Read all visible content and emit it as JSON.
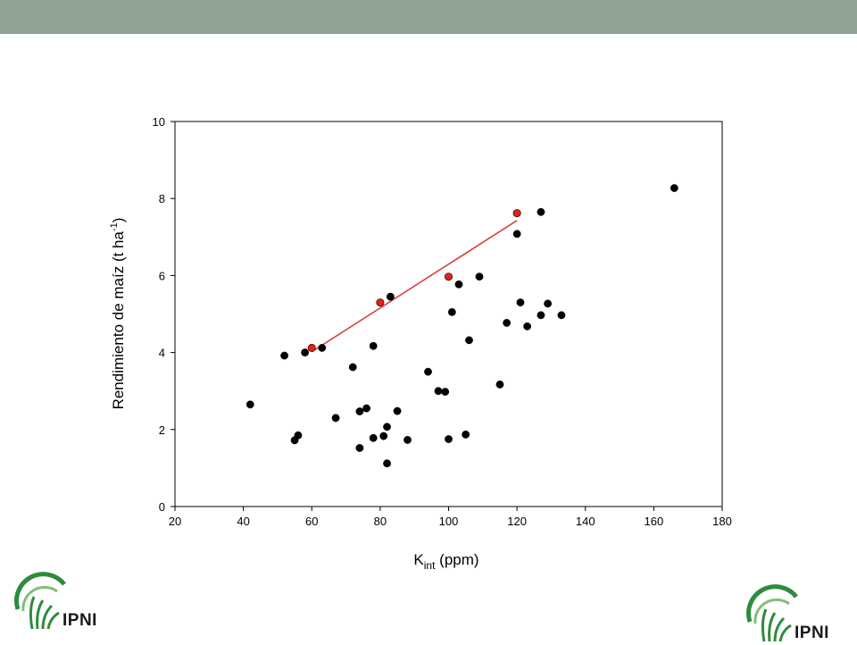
{
  "chart_data": {
    "type": "scatter",
    "title": "",
    "xlabel": {
      "main": "K",
      "sub": "int",
      "rest": " (ppm)"
    },
    "ylabel": {
      "main": "Rendimiento de maíz (t ha",
      "sup": "-1",
      "rest": ")"
    },
    "xlim": [
      20,
      180
    ],
    "ylim": [
      0,
      10
    ],
    "xticks": [
      20,
      40,
      60,
      80,
      100,
      120,
      140,
      160,
      180
    ],
    "yticks": [
      0,
      2,
      4,
      6,
      8,
      10
    ],
    "grid": false,
    "legend": "none",
    "series": [
      {
        "color": "#000000",
        "points": [
          [
            42,
            2.65
          ],
          [
            52,
            3.92
          ],
          [
            55,
            1.72
          ],
          [
            56,
            1.85
          ],
          [
            58,
            4.0
          ],
          [
            63,
            4.12
          ],
          [
            67,
            2.3
          ],
          [
            72,
            3.62
          ],
          [
            74,
            2.47
          ],
          [
            74,
            1.52
          ],
          [
            76,
            2.55
          ],
          [
            78,
            4.17
          ],
          [
            78,
            1.78
          ],
          [
            81,
            1.83
          ],
          [
            82,
            2.07
          ],
          [
            82,
            1.12
          ],
          [
            83,
            5.45
          ],
          [
            85,
            2.48
          ],
          [
            88,
            1.73
          ],
          [
            94,
            3.5
          ],
          [
            97,
            3.0
          ],
          [
            99,
            2.98
          ],
          [
            100,
            1.75
          ],
          [
            101,
            5.05
          ],
          [
            103,
            5.77
          ],
          [
            105,
            1.87
          ],
          [
            106,
            4.32
          ],
          [
            109,
            5.97
          ],
          [
            115,
            3.17
          ],
          [
            117,
            4.77
          ],
          [
            120,
            7.08
          ],
          [
            121,
            5.3
          ],
          [
            123,
            4.68
          ],
          [
            127,
            7.65
          ],
          [
            127,
            4.97
          ],
          [
            129,
            5.27
          ],
          [
            133,
            4.97
          ],
          [
            166,
            8.27
          ]
        ]
      },
      {
        "color": "#e2211c",
        "points": [
          [
            60,
            4.12
          ],
          [
            80,
            5.3
          ],
          [
            100,
            5.97
          ],
          [
            120,
            7.62
          ]
        ]
      }
    ],
    "trendline": {
      "color": "#d9403a",
      "from": [
        60,
        4.02
      ],
      "to": [
        120,
        7.43
      ]
    }
  },
  "logos": {
    "left": "IPNI",
    "right": "IPNI"
  },
  "colors": {
    "top_band": "#8fa394",
    "logo_green": "#2e8b3e"
  }
}
